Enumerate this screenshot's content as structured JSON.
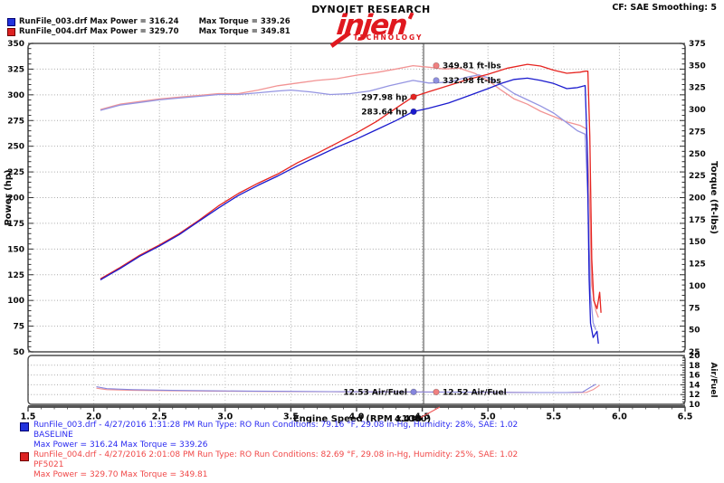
{
  "header": {
    "legend_rows": [
      {
        "label": "RunFile_003.drf Max Power = 316.24",
        "torque": "Max Torque = 339.26"
      },
      {
        "label": "RunFile_004.drf Max Power = 329.70",
        "torque": "Max Torque = 349.81"
      }
    ],
    "brand_top": "DYNOJET RESEARCH",
    "brand_name": "injen",
    "brand_sub": "TECHNOLOGY",
    "cf": "CF: SAE  Smoothing: 5"
  },
  "footer": {
    "runs": [
      {
        "line1": "RunFile_003.drf - 4/27/2016 1:31:28 PM  Run Type: RO  Run Conditions: 79.16 °F, 29.08 in-Hg,  Humidity:  28%, SAE: 1.02",
        "line2": "BASELINE",
        "line3": "Max Power = 316.24  Max Torque = 339.26"
      },
      {
        "line1": "RunFile_004.drf - 4/27/2016 2:01:08 PM  Run Type: RO  Run Conditions: 82.69 °F, 29.08 in-Hg,  Humidity:  25%, SAE: 1.02",
        "line2": "PF5021",
        "line3": "Max Power = 329.70  Max Torque = 349.81"
      }
    ]
  },
  "chart_data": {
    "type": "line",
    "main": {
      "xlabel": "Engine Speed (RPM x1000)",
      "x_range": [
        1.5,
        6.5
      ],
      "x_ticks": [
        1.5,
        2.0,
        2.5,
        3.0,
        3.5,
        4.0,
        4.5,
        5.0,
        5.5,
        6.0,
        6.5
      ],
      "left_axis": {
        "label": "Power (hp)",
        "range": [
          50,
          350
        ],
        "ticks": [
          350,
          325,
          300,
          275,
          250,
          225,
          200,
          175,
          150,
          125,
          100,
          75,
          50
        ]
      },
      "right_axis": {
        "label": "Torque (ft-lbs)",
        "range": [
          25,
          375
        ],
        "ticks": [
          375,
          350,
          325,
          300,
          275,
          250,
          225,
          200,
          175,
          150,
          125,
          100,
          75,
          50,
          25
        ]
      },
      "grid": true,
      "cursor_rpm": 4.51,
      "cursor_readout": "4.430",
      "series": [
        {
          "name": "torque-runfile-004",
          "axis": "torque",
          "color": "#f29494",
          "points": [
            [
              2.05,
              300
            ],
            [
              2.2,
              306
            ],
            [
              2.35,
              309
            ],
            [
              2.5,
              312
            ],
            [
              2.65,
              314
            ],
            [
              2.8,
              316
            ],
            [
              2.95,
              318
            ],
            [
              3.1,
              318
            ],
            [
              3.25,
              322
            ],
            [
              3.4,
              327
            ],
            [
              3.55,
              330
            ],
            [
              3.7,
              333
            ],
            [
              3.85,
              335
            ],
            [
              4.0,
              339
            ],
            [
              4.15,
              342
            ],
            [
              4.3,
              346
            ],
            [
              4.43,
              349.8
            ],
            [
              4.55,
              348
            ],
            [
              4.67,
              346
            ],
            [
              4.78,
              347
            ],
            [
              4.9,
              341
            ],
            [
              5.0,
              333
            ],
            [
              5.1,
              322
            ],
            [
              5.2,
              312
            ],
            [
              5.3,
              306
            ],
            [
              5.4,
              298
            ],
            [
              5.5,
              292
            ],
            [
              5.6,
              286
            ],
            [
              5.7,
              282
            ],
            [
              5.75,
              278
            ],
            [
              5.77,
              210
            ],
            [
              5.79,
              100
            ],
            [
              5.82,
              72
            ],
            [
              5.84,
              64
            ]
          ]
        },
        {
          "name": "torque-runfile-003",
          "axis": "torque",
          "color": "#9595e2",
          "points": [
            [
              2.05,
              299
            ],
            [
              2.2,
              305
            ],
            [
              2.35,
              308
            ],
            [
              2.5,
              311
            ],
            [
              2.65,
              313
            ],
            [
              2.8,
              315
            ],
            [
              2.95,
              317
            ],
            [
              3.1,
              317
            ],
            [
              3.25,
              319
            ],
            [
              3.4,
              321
            ],
            [
              3.5,
              322
            ],
            [
              3.65,
              320
            ],
            [
              3.8,
              317
            ],
            [
              3.95,
              318
            ],
            [
              4.1,
              321
            ],
            [
              4.25,
              327
            ],
            [
              4.43,
              333
            ],
            [
              4.55,
              330
            ],
            [
              4.7,
              331
            ],
            [
              4.85,
              337
            ],
            [
              4.93,
              339.3
            ],
            [
              5.0,
              336
            ],
            [
              5.1,
              328
            ],
            [
              5.2,
              318
            ],
            [
              5.3,
              311
            ],
            [
              5.4,
              304
            ],
            [
              5.5,
              296
            ],
            [
              5.6,
              285
            ],
            [
              5.68,
              276
            ],
            [
              5.74,
              272
            ],
            [
              5.76,
              200
            ],
            [
              5.78,
              90
            ],
            [
              5.8,
              58
            ],
            [
              5.82,
              50
            ]
          ]
        },
        {
          "name": "power-runfile-004",
          "axis": "power",
          "color": "#e62420",
          "points": [
            [
              2.05,
              121
            ],
            [
              2.2,
              132
            ],
            [
              2.35,
              144
            ],
            [
              2.5,
              154
            ],
            [
              2.65,
              165
            ],
            [
              2.8,
              178
            ],
            [
              2.95,
              192
            ],
            [
              3.1,
              204
            ],
            [
              3.25,
              214
            ],
            [
              3.4,
              223
            ],
            [
              3.55,
              234
            ],
            [
              3.7,
              243
            ],
            [
              3.85,
              253
            ],
            [
              4.0,
              263
            ],
            [
              4.15,
              274
            ],
            [
              4.3,
              287
            ],
            [
              4.43,
              298
            ],
            [
              4.55,
              303
            ],
            [
              4.7,
              309
            ],
            [
              4.85,
              315
            ],
            [
              5.0,
              320
            ],
            [
              5.15,
              326
            ],
            [
              5.3,
              329.7
            ],
            [
              5.4,
              328
            ],
            [
              5.5,
              324
            ],
            [
              5.6,
              321
            ],
            [
              5.7,
              322
            ],
            [
              5.74,
              323
            ],
            [
              5.76,
              323
            ],
            [
              5.775,
              260
            ],
            [
              5.79,
              140
            ],
            [
              5.805,
              100
            ],
            [
              5.83,
              92
            ],
            [
              5.85,
              108
            ],
            [
              5.86,
              88
            ]
          ]
        },
        {
          "name": "power-runfile-003",
          "axis": "power",
          "color": "#1a1ace",
          "points": [
            [
              2.05,
              120
            ],
            [
              2.2,
              131
            ],
            [
              2.35,
              143
            ],
            [
              2.5,
              153
            ],
            [
              2.65,
              164
            ],
            [
              2.8,
              177
            ],
            [
              2.95,
              190
            ],
            [
              3.1,
              202
            ],
            [
              3.25,
              212
            ],
            [
              3.4,
              221
            ],
            [
              3.55,
              231
            ],
            [
              3.7,
              240
            ],
            [
              3.85,
              249
            ],
            [
              4.0,
              257
            ],
            [
              4.15,
              266
            ],
            [
              4.3,
              275
            ],
            [
              4.43,
              283.6
            ],
            [
              4.55,
              287
            ],
            [
              4.7,
              292
            ],
            [
              4.85,
              299
            ],
            [
              5.0,
              306
            ],
            [
              5.1,
              311
            ],
            [
              5.2,
              315
            ],
            [
              5.3,
              316.2
            ],
            [
              5.4,
              314
            ],
            [
              5.5,
              311
            ],
            [
              5.6,
              306
            ],
            [
              5.68,
              307
            ],
            [
              5.74,
              309
            ],
            [
              5.755,
              250
            ],
            [
              5.77,
              120
            ],
            [
              5.78,
              78
            ],
            [
              5.8,
              64
            ],
            [
              5.83,
              70
            ],
            [
              5.84,
              58
            ]
          ]
        }
      ],
      "annotations": [
        {
          "text": "349.81 ft-lbs",
          "rpm": 4.606,
          "value": 349.81,
          "axis": "torque",
          "color": "#f08080",
          "side": "right"
        },
        {
          "text": "332.98 ft-lbs",
          "rpm": 4.606,
          "value": 332.98,
          "axis": "torque",
          "color": "#9090e0",
          "side": "right"
        },
        {
          "text": "297.98 hp",
          "rpm": 4.434,
          "value": 297.98,
          "axis": "power",
          "color": "#e62420",
          "side": "left"
        },
        {
          "text": "283.64 hp",
          "rpm": 4.434,
          "value": 283.64,
          "axis": "power",
          "color": "#1a1ace",
          "side": "left"
        }
      ]
    },
    "af": {
      "axis_label": "Air/Fuel",
      "range": [
        10,
        20
      ],
      "ticks": [
        20,
        18,
        16,
        14,
        12,
        10
      ],
      "series": [
        {
          "name": "airfuel-runfile-004",
          "color": "#f29494",
          "points": [
            [
              2.02,
              13.3
            ],
            [
              2.1,
              13.0
            ],
            [
              2.3,
              12.85
            ],
            [
              2.6,
              12.75
            ],
            [
              2.9,
              12.7
            ],
            [
              3.2,
              12.65
            ],
            [
              3.5,
              12.6
            ],
            [
              3.8,
              12.58
            ],
            [
              4.1,
              12.55
            ],
            [
              4.43,
              12.52
            ],
            [
              4.8,
              12.5
            ],
            [
              5.1,
              12.45
            ],
            [
              5.4,
              12.4
            ],
            [
              5.65,
              12.4
            ],
            [
              5.75,
              12.45
            ],
            [
              5.8,
              13.0
            ],
            [
              5.85,
              13.9
            ]
          ]
        },
        {
          "name": "airfuel-runfile-003",
          "color": "#8585dd",
          "points": [
            [
              2.02,
              13.6
            ],
            [
              2.1,
              13.2
            ],
            [
              2.3,
              13.0
            ],
            [
              2.6,
              12.85
            ],
            [
              2.9,
              12.75
            ],
            [
              3.2,
              12.7
            ],
            [
              3.5,
              12.65
            ],
            [
              3.8,
              12.6
            ],
            [
              4.1,
              12.55
            ],
            [
              4.43,
              12.53
            ],
            [
              4.8,
              12.5
            ],
            [
              5.1,
              12.45
            ],
            [
              5.4,
              12.4
            ],
            [
              5.6,
              12.4
            ],
            [
              5.72,
              12.5
            ],
            [
              5.78,
              13.5
            ],
            [
              5.82,
              14.1
            ]
          ]
        }
      ],
      "annotations": [
        {
          "text": "12.53 Air/Fuel",
          "rpm": 4.434,
          "value": 12.53,
          "color": "#8585dd",
          "side": "left"
        },
        {
          "text": "12.52 Air/Fuel",
          "rpm": 4.606,
          "value": 12.52,
          "color": "#f08080",
          "side": "right"
        }
      ]
    },
    "colors": {
      "grid": "#a8a8a8",
      "border": "#4d4d4d",
      "cursor": "#444444",
      "leader": "#f05555"
    }
  }
}
